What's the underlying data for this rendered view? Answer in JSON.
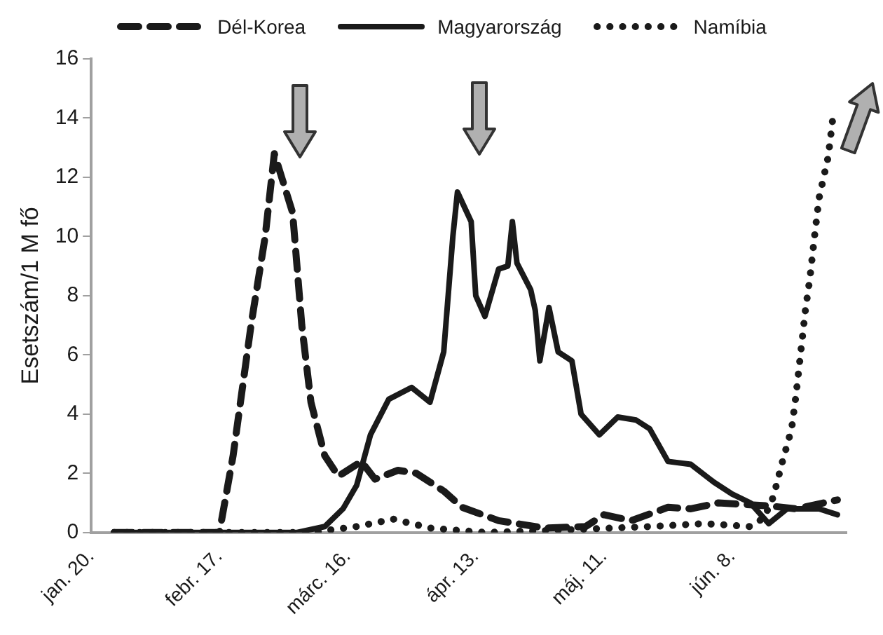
{
  "chart_data": {
    "type": "line",
    "ylabel": "Esetszám/1 M fő",
    "legend": "top",
    "grid": false,
    "marker": "none",
    "xlim": [
      "--01-20",
      "--07-03"
    ],
    "xticks": [
      {
        "value": "--01-20",
        "label": "jan. 20."
      },
      {
        "value": "--02-17",
        "label": "febr. 17."
      },
      {
        "value": "--03-16",
        "label": "márc. 16."
      },
      {
        "value": "--04-13",
        "label": "ápr. 13."
      },
      {
        "value": "--05-11",
        "label": "máj. 11."
      },
      {
        "value": "--06-08",
        "label": "jún. 8."
      }
    ],
    "ylim": [
      0,
      16
    ],
    "yticks": [
      0,
      2,
      4,
      6,
      8,
      10,
      12,
      14,
      16
    ],
    "series": [
      {
        "name": "Dél-Korea",
        "color": "#1a1a1a",
        "line_style": "dashed",
        "x": [
          "--01-25",
          "--02-17",
          "--02-20",
          "--02-24",
          "--02-27",
          "--02-29",
          "--03-04",
          "--03-06",
          "--03-08",
          "--03-11",
          "--03-14",
          "--03-19",
          "--03-22",
          "--03-27",
          "--03-31",
          "--04-06",
          "--04-10",
          "--04-18",
          "--04-28",
          "--05-07",
          "--05-11",
          "--05-17",
          "--05-25",
          "--05-30",
          "--06-05",
          "--06-16",
          "--06-22",
          "--07-01"
        ],
        "values": [
          0,
          0,
          2.6,
          7.1,
          10,
          12.8,
          10.8,
          7,
          4.4,
          2.6,
          1.9,
          2.4,
          1.8,
          2.1,
          2,
          1.4,
          0.85,
          0.4,
          0.15,
          0.2,
          0.6,
          0.4,
          0.85,
          0.8,
          1,
          0.9,
          0.8,
          1.1
        ]
      },
      {
        "name": "Magyarország",
        "color": "#1a1a1a",
        "line_style": "solid",
        "x": [
          "--01-25",
          "--03-05",
          "--03-11",
          "--03-15",
          "--03-18",
          "--03-21",
          "--03-25",
          "--03-30",
          "--04-03",
          "--04-06",
          "--04-08",
          "--04-09",
          "--04-12",
          "--04-13",
          "--04-15",
          "--04-18",
          "--04-20",
          "--04-21",
          "--04-22",
          "--04-25",
          "--04-26",
          "--04-27",
          "--04-29",
          "--05-01",
          "--05-04",
          "--05-06",
          "--05-10",
          "--05-14",
          "--05-18",
          "--05-21",
          "--05-25",
          "--05-30",
          "--06-04",
          "--06-08",
          "--06-12",
          "--06-16",
          "--06-20",
          "--06-27",
          "--07-01"
        ],
        "values": [
          0,
          0,
          0.2,
          0.8,
          1.6,
          3.3,
          4.5,
          4.9,
          4.4,
          6.1,
          10,
          11.5,
          10.5,
          8,
          7.3,
          8.9,
          9,
          10.5,
          9.1,
          8.2,
          7.5,
          5.8,
          7.6,
          6.1,
          5.8,
          4,
          3.3,
          3.9,
          3.8,
          3.5,
          2.4,
          2.3,
          1.7,
          1.3,
          1,
          0.3,
          0.8,
          0.8,
          0.6
        ]
      },
      {
        "name": "Namíbia",
        "color": "#1a1a1a",
        "line_style": "dotted",
        "x": [
          "--01-25",
          "--03-08",
          "--03-18",
          "--03-26",
          "--04-03",
          "--04-15",
          "--05-05",
          "--05-21",
          "--06-02",
          "--06-12",
          "--06-15",
          "--06-17",
          "--06-19",
          "--06-21",
          "--06-22",
          "--06-23",
          "--06-24",
          "--06-25",
          "--06-26",
          "--06-27",
          "--06-29",
          "--06-30"
        ],
        "values": [
          0,
          0,
          0.2,
          0.45,
          0.15,
          0,
          0.1,
          0.2,
          0.3,
          0.2,
          0.5,
          1.2,
          2.4,
          3.5,
          4.7,
          6.1,
          7.5,
          8.6,
          10,
          11.3,
          12.7,
          14
        ]
      }
    ]
  }
}
